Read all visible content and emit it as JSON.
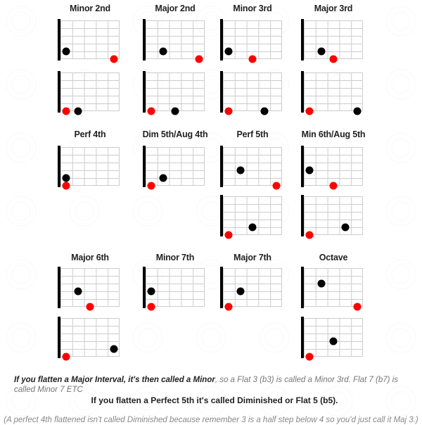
{
  "colors": {
    "root": "#ff0000",
    "interval": "#000000"
  },
  "intervals": [
    {
      "name": "Minor 2nd",
      "diagrams": [
        [
          {
            "fret": 1,
            "string": 4,
            "color": "interval"
          },
          {
            "fret": 5,
            "string": 5,
            "color": "root"
          }
        ],
        [
          {
            "fret": 1,
            "string": 5,
            "color": "root"
          },
          {
            "fret": 2,
            "string": 5,
            "color": "interval"
          }
        ]
      ]
    },
    {
      "name": "Major 2nd",
      "diagrams": [
        [
          {
            "fret": 2,
            "string": 4,
            "color": "interval"
          },
          {
            "fret": 5,
            "string": 5,
            "color": "root"
          }
        ],
        [
          {
            "fret": 1,
            "string": 5,
            "color": "root"
          },
          {
            "fret": 3,
            "string": 5,
            "color": "interval"
          }
        ]
      ]
    },
    {
      "name": "Minor 3rd",
      "diagrams": [
        [
          {
            "fret": 1,
            "string": 4,
            "color": "interval"
          },
          {
            "fret": 3,
            "string": 5,
            "color": "root"
          }
        ],
        [
          {
            "fret": 1,
            "string": 5,
            "color": "root"
          },
          {
            "fret": 4,
            "string": 5,
            "color": "interval"
          }
        ]
      ]
    },
    {
      "name": "Major 3rd",
      "diagrams": [
        [
          {
            "fret": 2,
            "string": 4,
            "color": "interval"
          },
          {
            "fret": 3,
            "string": 5,
            "color": "root"
          }
        ],
        [
          {
            "fret": 1,
            "string": 5,
            "color": "root"
          },
          {
            "fret": 5,
            "string": 5,
            "color": "interval"
          }
        ]
      ]
    },
    {
      "name": "Perf 4th",
      "diagrams": [
        [
          {
            "fret": 1,
            "string": 4,
            "color": "interval"
          },
          {
            "fret": 1,
            "string": 5,
            "color": "root"
          }
        ]
      ]
    },
    {
      "name": "Dim 5th/Aug 4th",
      "diagrams": [
        [
          {
            "fret": 2,
            "string": 4,
            "color": "interval"
          },
          {
            "fret": 1,
            "string": 5,
            "color": "root"
          }
        ]
      ]
    },
    {
      "name": "Perf 5th",
      "diagrams": [
        [
          {
            "fret": 2,
            "string": 3,
            "color": "interval"
          },
          {
            "fret": 5,
            "string": 5,
            "color": "root"
          }
        ],
        [
          {
            "fret": 3,
            "string": 4,
            "color": "interval"
          },
          {
            "fret": 1,
            "string": 5,
            "color": "root"
          }
        ]
      ]
    },
    {
      "name": "Min 6th/Aug 5th",
      "diagrams": [
        [
          {
            "fret": 1,
            "string": 3,
            "color": "interval"
          },
          {
            "fret": 3,
            "string": 5,
            "color": "root"
          }
        ],
        [
          {
            "fret": 4,
            "string": 4,
            "color": "interval"
          },
          {
            "fret": 1,
            "string": 5,
            "color": "root"
          }
        ]
      ]
    },
    {
      "name": "Major 6th",
      "diagrams": [
        [
          {
            "fret": 2,
            "string": 3,
            "color": "interval"
          },
          {
            "fret": 3,
            "string": 5,
            "color": "root"
          }
        ],
        [
          {
            "fret": 5,
            "string": 4,
            "color": "interval"
          },
          {
            "fret": 1,
            "string": 5,
            "color": "root"
          }
        ]
      ]
    },
    {
      "name": "Minor 7th",
      "diagrams": [
        [
          {
            "fret": 1,
            "string": 3,
            "color": "interval"
          },
          {
            "fret": 1,
            "string": 5,
            "color": "root"
          }
        ]
      ]
    },
    {
      "name": "Major 7th",
      "diagrams": [
        [
          {
            "fret": 2,
            "string": 3,
            "color": "interval"
          },
          {
            "fret": 1,
            "string": 5,
            "color": "root"
          }
        ]
      ]
    },
    {
      "name": "Octave",
      "diagrams": [
        [
          {
            "fret": 2,
            "string": 2,
            "color": "interval"
          },
          {
            "fret": 5,
            "string": 5,
            "color": "root"
          }
        ],
        [
          {
            "fret": 3,
            "string": 3,
            "color": "interval"
          },
          {
            "fret": 1,
            "string": 5,
            "color": "root"
          }
        ]
      ]
    }
  ],
  "notes": {
    "p1_bold": "If you flatten a Major Interval, it's then called a Minor",
    "p1_rest": ", so a Flat 3 (b3) is called a Minor 3rd. Flat 7 (b7) is called Minor 7 ETC",
    "p2": "If you flatten a Perfect 5th it's called Diminished or Flat 5 (b5).",
    "p3": "(A perfect 4th flattened isn't called Diminished because remember 3 is a half step below 4 so you'd just call it Maj 3.)"
  }
}
